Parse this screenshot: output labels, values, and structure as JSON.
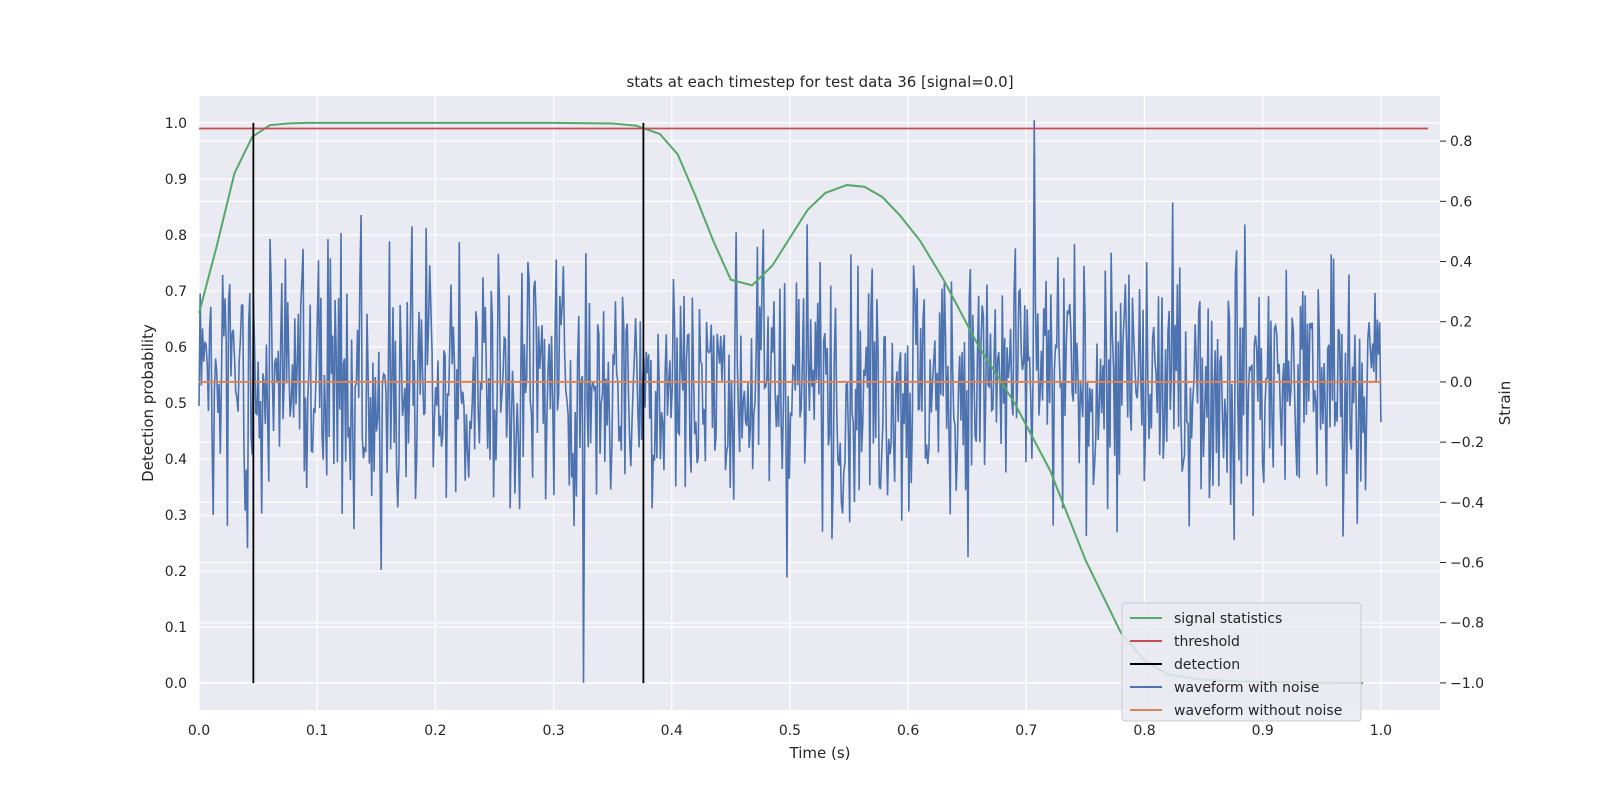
{
  "chart_data": {
    "type": "line",
    "title": "stats at each timestep for test data 36 [signal=0.0]",
    "xlabel": "Time (s)",
    "ylabel_left": "Detection probability",
    "ylabel_right": "Strain",
    "xlim": [
      0.0,
      1.05
    ],
    "ylim_left": [
      -0.048,
      1.048
    ],
    "ylim_right": [
      -1.09,
      0.95
    ],
    "xticks": [
      "0.0",
      "0.1",
      "0.2",
      "0.3",
      "0.4",
      "0.5",
      "0.6",
      "0.7",
      "0.8",
      "0.9",
      "1.0"
    ],
    "yticks_left": [
      "0.0",
      "0.1",
      "0.2",
      "0.3",
      "0.4",
      "0.5",
      "0.6",
      "0.7",
      "0.8",
      "0.9",
      "1.0"
    ],
    "yticks_right": [
      "−1.0",
      "−0.8",
      "−0.6",
      "−0.4",
      "−0.2",
      "0.0",
      "0.2",
      "0.4",
      "0.6",
      "0.8"
    ],
    "grid": true,
    "legend_position": "lower right",
    "legend": [
      {
        "label": "signal statistics",
        "color": "#55a868"
      },
      {
        "label": "threshold",
        "color": "#c44e52"
      },
      {
        "label": "detection",
        "color": "#000000"
      },
      {
        "label": "waveform with noise",
        "color": "#4c72b0"
      },
      {
        "label": "waveform without noise",
        "color": "#dd8452"
      }
    ],
    "signal_statistics": {
      "axis": "left",
      "x": [
        0.0,
        0.015,
        0.03,
        0.045,
        0.06,
        0.075,
        0.09,
        0.15,
        0.25,
        0.3,
        0.35,
        0.37,
        0.39,
        0.405,
        0.42,
        0.435,
        0.45,
        0.468,
        0.485,
        0.5,
        0.515,
        0.53,
        0.548,
        0.563,
        0.578,
        0.593,
        0.61,
        0.63,
        0.66,
        0.69,
        0.72,
        0.75,
        0.78,
        0.8,
        0.82,
        0.85,
        0.88,
        0.91,
        0.94,
        0.985
      ],
      "y": [
        0.66,
        0.78,
        0.91,
        0.975,
        0.996,
        0.999,
        1.0,
        1.0,
        1.0,
        1.0,
        0.999,
        0.995,
        0.98,
        0.944,
        0.87,
        0.79,
        0.72,
        0.71,
        0.745,
        0.795,
        0.845,
        0.875,
        0.889,
        0.886,
        0.868,
        0.835,
        0.79,
        0.72,
        0.6,
        0.5,
        0.38,
        0.22,
        0.09,
        0.04,
        0.015,
        0.006,
        0.003,
        0.002,
        0.001,
        0.0
      ]
    },
    "threshold": {
      "axis": "left",
      "y": 0.99
    },
    "detections": {
      "axis": "left",
      "x": [
        0.046,
        0.376
      ],
      "ymin": 0.0,
      "ymax": 1.0
    },
    "waveform_with_noise": {
      "axis": "right",
      "x_range": [
        0.0,
        1.0
      ],
      "n_points": 1000,
      "std": 0.22,
      "min": -1.0,
      "max": 0.87
    },
    "waveform_without_noise": {
      "axis": "right",
      "x_range": [
        0.0,
        1.0
      ],
      "y": 0.0
    }
  }
}
